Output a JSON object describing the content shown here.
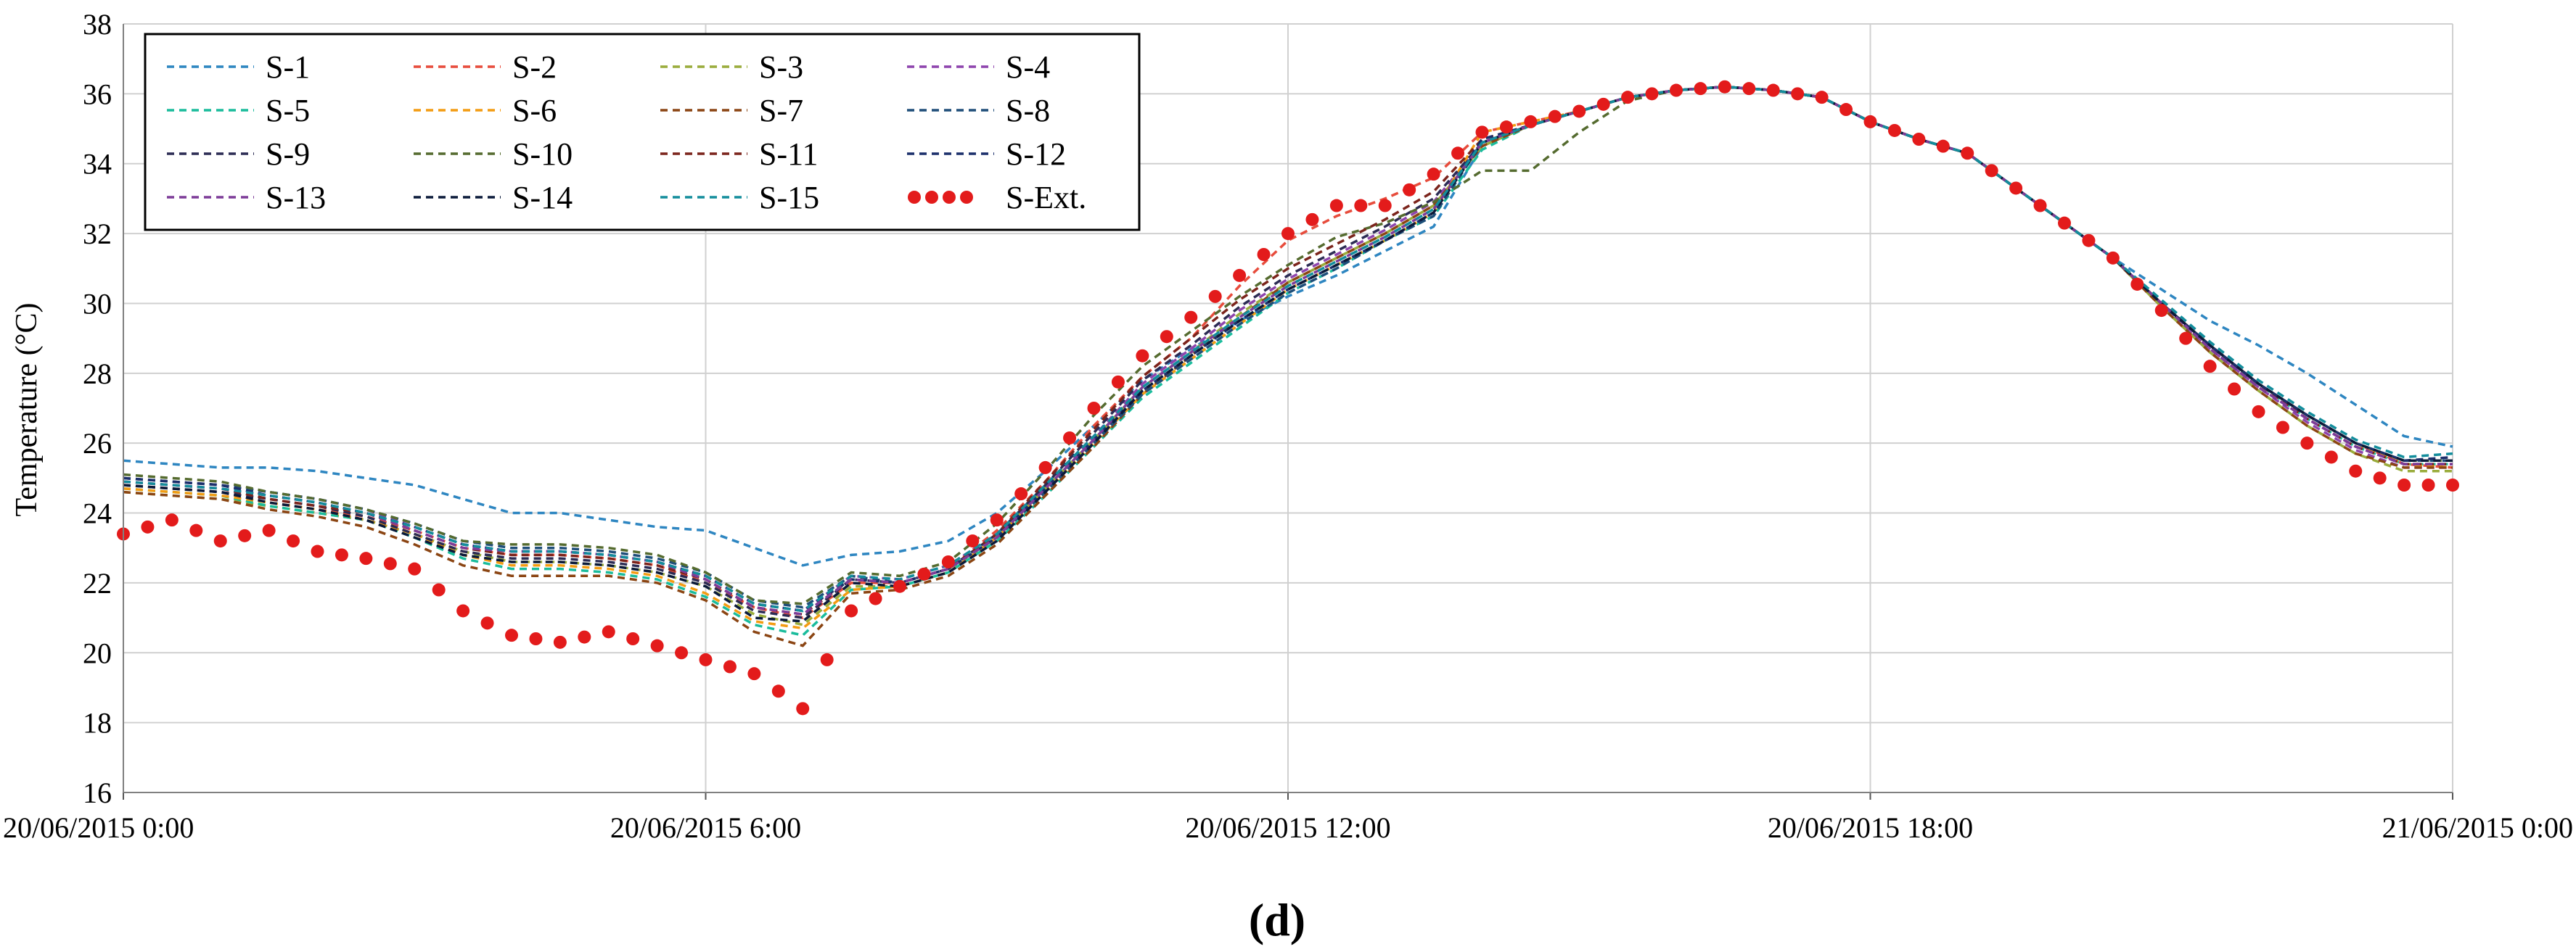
{
  "chart_data": {
    "type": "line",
    "title": "",
    "xlabel": "",
    "ylabel": "Temperature (°C)",
    "panel_label": "(d)",
    "xlim": [
      0,
      24
    ],
    "ylim": [
      16,
      38
    ],
    "y_ticks": [
      16,
      18,
      20,
      22,
      24,
      26,
      28,
      30,
      32,
      34,
      36,
      38
    ],
    "x_ticks": [
      0,
      6,
      12,
      18,
      24
    ],
    "x_tick_labels": [
      "20/06/2015 0:00",
      "20/06/2015 6:00",
      "20/06/2015 12:00",
      "20/06/2015 18:00",
      "21/06/2015 0:00"
    ],
    "grid": true,
    "legend": {
      "position": "top-left",
      "columns": 4
    },
    "x": [
      0,
      0.5,
      1,
      1.5,
      2,
      2.5,
      3,
      3.5,
      4,
      4.5,
      5,
      5.5,
      6,
      6.5,
      7,
      7.5,
      8,
      8.5,
      9,
      9.5,
      10,
      10.5,
      11,
      11.5,
      12,
      12.5,
      13,
      13.5,
      14,
      14.5,
      15,
      15.5,
      16,
      16.5,
      17,
      17.5,
      18,
      18.5,
      19,
      19.5,
      20,
      20.5,
      21,
      21.5,
      22,
      22.5,
      23,
      23.5,
      24
    ],
    "series": [
      {
        "name": "S-1",
        "color": "#2e86c1",
        "style": "dashed",
        "values": [
          25.5,
          25.4,
          25.3,
          25.3,
          25.2,
          25.0,
          24.8,
          24.4,
          24.0,
          24.0,
          23.8,
          23.6,
          23.5,
          23.0,
          22.5,
          22.8,
          22.9,
          23.2,
          24.0,
          25.2,
          26.5,
          27.8,
          28.7,
          29.5,
          30.2,
          30.8,
          31.5,
          32.2,
          34.5,
          35.1,
          35.5,
          35.9,
          36.1,
          36.2,
          36.1,
          35.9,
          35.2,
          34.7,
          34.3,
          33.3,
          32.3,
          31.3,
          30.4,
          29.5,
          28.8,
          28.0,
          27.1,
          26.2,
          25.9
        ]
      },
      {
        "name": "S-2",
        "color": "#e74c3c",
        "style": "dashed",
        "values": [
          24.8,
          24.7,
          24.6,
          24.3,
          24.1,
          23.9,
          23.5,
          23.0,
          22.8,
          22.8,
          22.7,
          22.5,
          22.0,
          21.3,
          21.0,
          22.0,
          22.0,
          22.4,
          23.5,
          24.9,
          26.5,
          27.9,
          29.0,
          30.5,
          31.8,
          32.5,
          33.0,
          33.6,
          34.9,
          35.2,
          35.5,
          35.9,
          36.1,
          36.2,
          36.1,
          35.9,
          35.2,
          34.7,
          34.3,
          33.3,
          32.3,
          31.3,
          30.0,
          28.8,
          27.7,
          26.8,
          26.0,
          25.4,
          25.3
        ]
      },
      {
        "name": "S-3",
        "color": "#9aac3c",
        "style": "dashed",
        "values": [
          24.6,
          24.5,
          24.4,
          24.2,
          24.0,
          23.8,
          23.4,
          22.9,
          22.6,
          22.6,
          22.5,
          22.3,
          21.9,
          21.1,
          20.8,
          21.9,
          21.9,
          22.3,
          23.3,
          24.7,
          26.1,
          27.6,
          28.6,
          29.7,
          30.6,
          31.3,
          32.0,
          32.8,
          34.5,
          35.1,
          35.5,
          35.9,
          36.1,
          36.2,
          36.1,
          35.9,
          35.2,
          34.7,
          34.3,
          33.3,
          32.3,
          31.3,
          29.9,
          28.6,
          27.5,
          26.5,
          25.7,
          25.2,
          25.2
        ]
      },
      {
        "name": "S-4",
        "color": "#8e44ad",
        "style": "dashed",
        "values": [
          25.0,
          24.9,
          24.8,
          24.6,
          24.4,
          24.1,
          23.6,
          23.1,
          22.9,
          22.9,
          22.8,
          22.6,
          22.2,
          21.4,
          21.2,
          22.2,
          22.1,
          22.5,
          23.4,
          24.8,
          26.2,
          27.7,
          28.7,
          29.8,
          30.7,
          31.4,
          32.1,
          32.9,
          34.6,
          35.1,
          35.5,
          35.9,
          36.1,
          36.2,
          36.1,
          35.9,
          35.2,
          34.7,
          34.3,
          33.3,
          32.3,
          31.3,
          30.0,
          28.7,
          27.6,
          26.6,
          25.8,
          25.3,
          25.3
        ]
      },
      {
        "name": "S-5",
        "color": "#1abc9c",
        "style": "dashed",
        "values": [
          24.7,
          24.6,
          24.5,
          24.2,
          24.0,
          23.8,
          23.3,
          22.7,
          22.4,
          22.4,
          22.3,
          22.1,
          21.6,
          20.8,
          20.5,
          21.8,
          21.9,
          22.3,
          23.2,
          24.5,
          25.9,
          27.3,
          28.3,
          29.3,
          30.3,
          31.0,
          31.8,
          32.5,
          34.4,
          35.1,
          35.5,
          35.9,
          36.1,
          36.2,
          36.1,
          35.9,
          35.2,
          34.7,
          34.3,
          33.3,
          32.3,
          31.3,
          30.0,
          28.8,
          27.7,
          26.7,
          25.9,
          25.4,
          25.4
        ]
      },
      {
        "name": "S-6",
        "color": "#f39c12",
        "style": "dashed",
        "values": [
          24.7,
          24.6,
          24.5,
          24.3,
          24.1,
          23.8,
          23.4,
          22.8,
          22.5,
          22.5,
          22.4,
          22.2,
          21.7,
          20.9,
          20.7,
          21.8,
          21.9,
          22.3,
          23.3,
          24.6,
          26.0,
          27.4,
          28.4,
          29.4,
          30.4,
          31.1,
          31.8,
          32.6,
          34.9,
          35.2,
          35.5,
          35.9,
          36.1,
          36.2,
          36.1,
          35.9,
          35.2,
          34.7,
          34.3,
          33.3,
          32.3,
          31.3,
          30.0,
          28.8,
          27.7,
          26.8,
          26.0,
          25.4,
          25.3
        ]
      },
      {
        "name": "S-7",
        "color": "#8b4513",
        "style": "dashed",
        "values": [
          24.6,
          24.5,
          24.4,
          24.1,
          23.9,
          23.6,
          23.1,
          22.5,
          22.2,
          22.2,
          22.2,
          22.0,
          21.5,
          20.6,
          20.2,
          21.7,
          21.8,
          22.2,
          23.1,
          24.5,
          25.9,
          27.4,
          28.5,
          29.6,
          30.6,
          31.3,
          32.0,
          32.8,
          34.5,
          35.1,
          35.5,
          35.9,
          36.1,
          36.2,
          36.1,
          35.9,
          35.2,
          34.7,
          34.3,
          33.3,
          32.3,
          31.3,
          29.9,
          28.6,
          27.5,
          26.5,
          25.7,
          25.3,
          25.3
        ]
      },
      {
        "name": "S-8",
        "color": "#1f4e79",
        "style": "dashed",
        "values": [
          25.0,
          24.9,
          24.8,
          24.6,
          24.4,
          24.1,
          23.7,
          23.2,
          23.0,
          23.0,
          22.9,
          22.7,
          22.3,
          21.5,
          21.3,
          22.2,
          22.0,
          22.4,
          23.3,
          24.6,
          26.0,
          27.4,
          28.4,
          29.4,
          30.3,
          31.0,
          31.8,
          32.5,
          34.6,
          35.1,
          35.5,
          35.9,
          36.1,
          36.2,
          36.1,
          35.9,
          35.2,
          34.7,
          34.3,
          33.3,
          32.3,
          31.3,
          30.0,
          28.8,
          27.7,
          26.8,
          26.0,
          25.5,
          25.5
        ]
      },
      {
        "name": "S-9",
        "color": "#2c2c54",
        "style": "dashed",
        "values": [
          24.8,
          24.7,
          24.6,
          24.4,
          24.2,
          23.9,
          23.4,
          22.9,
          22.7,
          22.7,
          22.6,
          22.4,
          22.0,
          21.2,
          21.0,
          22.1,
          22.0,
          22.4,
          23.4,
          24.8,
          26.3,
          27.8,
          28.8,
          29.9,
          30.8,
          31.5,
          32.2,
          33.0,
          34.6,
          35.1,
          35.5,
          35.9,
          36.1,
          36.2,
          36.1,
          35.9,
          35.2,
          34.7,
          34.3,
          33.3,
          32.3,
          31.3,
          30.0,
          28.7,
          27.6,
          26.7,
          25.9,
          25.4,
          25.4
        ]
      },
      {
        "name": "S-10",
        "color": "#556b2f",
        "style": "dashed",
        "values": [
          25.1,
          25.0,
          24.9,
          24.6,
          24.4,
          24.1,
          23.7,
          23.2,
          23.1,
          23.1,
          23.0,
          22.8,
          22.3,
          21.5,
          21.4,
          22.3,
          22.2,
          22.6,
          23.7,
          25.2,
          26.8,
          28.2,
          29.2,
          30.2,
          31.1,
          31.9,
          32.3,
          32.9,
          33.8,
          33.8,
          34.9,
          35.8,
          36.1,
          36.2,
          36.1,
          35.9,
          35.2,
          34.7,
          34.3,
          33.3,
          32.3,
          31.3,
          30.0,
          28.8,
          27.7,
          26.8,
          26.0,
          25.5,
          25.5
        ]
      },
      {
        "name": "S-11",
        "color": "#7b241c",
        "style": "dashed",
        "values": [
          24.9,
          24.8,
          24.7,
          24.4,
          24.2,
          24.0,
          23.5,
          23.0,
          22.8,
          22.8,
          22.7,
          22.5,
          22.1,
          21.3,
          21.1,
          22.1,
          22.0,
          22.4,
          23.4,
          24.9,
          26.4,
          27.9,
          29.0,
          30.1,
          31.0,
          31.7,
          32.4,
          33.2,
          34.7,
          35.1,
          35.5,
          35.9,
          36.1,
          36.2,
          36.1,
          35.9,
          35.2,
          34.7,
          34.3,
          33.3,
          32.3,
          31.3,
          30.0,
          28.8,
          27.7,
          26.7,
          25.9,
          25.4,
          25.4
        ]
      },
      {
        "name": "S-12",
        "color": "#1b2f6b",
        "style": "dashed",
        "values": [
          25.0,
          24.9,
          24.8,
          24.5,
          24.3,
          24.0,
          23.6,
          23.1,
          22.9,
          22.9,
          22.8,
          22.6,
          22.2,
          21.4,
          21.2,
          22.1,
          22.0,
          22.4,
          23.3,
          24.7,
          26.1,
          27.5,
          28.5,
          29.5,
          30.4,
          31.1,
          31.8,
          32.6,
          34.7,
          35.1,
          35.5,
          35.9,
          36.1,
          36.2,
          36.1,
          35.9,
          35.2,
          34.7,
          34.3,
          33.3,
          32.3,
          31.3,
          30.0,
          28.8,
          27.7,
          26.8,
          26.0,
          25.5,
          25.6
        ]
      },
      {
        "name": "S-13",
        "color": "#7d3c98",
        "style": "dashed",
        "values": [
          24.9,
          24.8,
          24.7,
          24.5,
          24.3,
          24.0,
          23.5,
          23.0,
          22.9,
          22.9,
          22.8,
          22.6,
          22.1,
          21.3,
          21.1,
          22.1,
          22.0,
          22.4,
          23.3,
          24.7,
          26.1,
          27.6,
          28.6,
          29.6,
          30.5,
          31.2,
          31.9,
          32.7,
          34.6,
          35.1,
          35.5,
          35.9,
          36.1,
          36.2,
          36.1,
          35.9,
          35.2,
          34.7,
          34.3,
          33.3,
          32.3,
          31.3,
          30.0,
          28.7,
          27.6,
          26.7,
          25.9,
          25.4,
          25.4
        ]
      },
      {
        "name": "S-14",
        "color": "#0b1a3a",
        "style": "dashed",
        "values": [
          24.8,
          24.7,
          24.6,
          24.3,
          24.1,
          23.8,
          23.3,
          22.8,
          22.6,
          22.6,
          22.5,
          22.3,
          21.9,
          21.0,
          20.9,
          22.0,
          21.9,
          22.3,
          23.2,
          24.6,
          26.0,
          27.5,
          28.5,
          29.5,
          30.4,
          31.1,
          31.8,
          32.6,
          34.6,
          35.1,
          35.5,
          35.9,
          36.1,
          36.2,
          36.1,
          35.9,
          35.2,
          34.7,
          34.3,
          33.3,
          32.3,
          31.3,
          30.0,
          28.8,
          27.7,
          26.8,
          26.0,
          25.5,
          25.5
        ]
      },
      {
        "name": "S-15",
        "color": "#138d9c",
        "style": "dashed",
        "values": [
          24.9,
          24.8,
          24.7,
          24.5,
          24.3,
          24.0,
          23.6,
          23.1,
          22.9,
          22.9,
          22.8,
          22.6,
          22.2,
          21.4,
          21.2,
          22.2,
          22.1,
          22.5,
          23.4,
          24.8,
          26.2,
          27.6,
          28.6,
          29.6,
          30.5,
          31.2,
          31.9,
          32.7,
          34.6,
          35.1,
          35.5,
          35.9,
          36.1,
          36.2,
          36.1,
          35.9,
          35.2,
          34.7,
          34.3,
          33.3,
          32.3,
          31.3,
          30.1,
          28.9,
          27.8,
          26.9,
          26.1,
          25.6,
          25.7
        ]
      },
      {
        "name": "S-Ext.",
        "color": "#e31b1b",
        "style": "dots",
        "values": [
          23.4,
          23.8,
          23.2,
          23.5,
          22.9,
          22.7,
          22.4,
          21.2,
          20.5,
          20.3,
          20.6,
          20.2,
          19.8,
          19.4,
          18.4,
          21.2,
          21.9,
          22.6,
          23.8,
          25.3,
          27.0,
          28.5,
          29.6,
          30.8,
          32.0,
          32.8,
          32.8,
          33.7,
          34.9,
          35.2,
          35.5,
          35.9,
          36.1,
          36.2,
          36.1,
          35.9,
          35.2,
          34.7,
          34.3,
          33.3,
          32.3,
          31.3,
          29.8,
          28.2,
          26.9,
          26.0,
          25.2,
          24.8,
          24.8
        ]
      }
    ]
  }
}
